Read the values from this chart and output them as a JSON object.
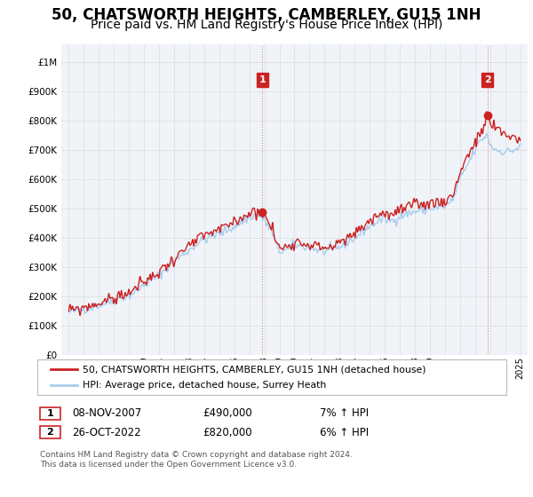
{
  "title": "50, CHATSWORTH HEIGHTS, CAMBERLEY, GU15 1NH",
  "subtitle": "Price paid vs. HM Land Registry's House Price Index (HPI)",
  "title_fontsize": 12,
  "subtitle_fontsize": 10,
  "ytick_values": [
    0,
    100000,
    200000,
    300000,
    400000,
    500000,
    600000,
    700000,
    800000,
    900000,
    1000000
  ],
  "ylim": [
    0,
    1060000
  ],
  "background_color": "#ffffff",
  "grid_color": "#dddddd",
  "hpi_color": "#aaccee",
  "price_color": "#cc2222",
  "vline_color": "#dd8888",
  "annotation_box_color": "#cc2222",
  "purchase1_year": 2007.86,
  "purchase1_price": 490000,
  "purchase1_label": "1",
  "purchase2_year": 2022.82,
  "purchase2_price": 820000,
  "purchase2_label": "2",
  "legend_line1": "50, CHATSWORTH HEIGHTS, CAMBERLEY, GU15 1NH (detached house)",
  "legend_line2": "HPI: Average price, detached house, Surrey Heath",
  "table_row1": [
    "1",
    "08-NOV-2007",
    "£490,000",
    "7% ↑ HPI"
  ],
  "table_row2": [
    "2",
    "26-OCT-2022",
    "£820,000",
    "6% ↑ HPI"
  ],
  "footnote": "Contains HM Land Registry data © Crown copyright and database right 2024.\nThis data is licensed under the Open Government Licence v3.0."
}
